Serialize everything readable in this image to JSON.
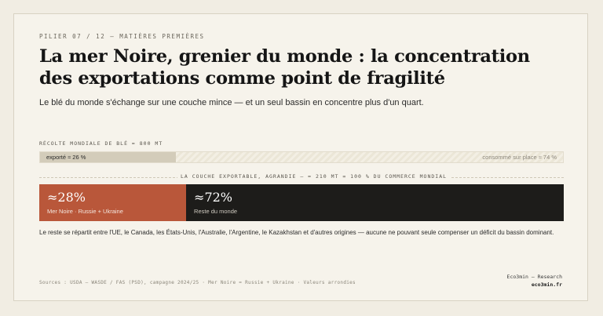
{
  "kicker": "PILIER 07 / 12 — MATIÈRES PREMIÈRES",
  "title": "La mer Noire, grenier du monde : la concentration des exportations comme point de fragilité",
  "subtitle": "Le blé du monde s'échange sur une couche mince — et un seul bassin en concentre plus d'un quart.",
  "harvest": {
    "label": "RÉCOLTE MONDIALE DE BLÉ ≈ 800 MT",
    "exported_label": "exporté ≈ 26 %",
    "exported_share": 0.26,
    "consumed_label": "consommé sur place ≈ 74 %"
  },
  "export_layer": {
    "label": "LA COUCHE EXPORTABLE, AGRANDIE — ≈ 210 MT = 100 % DU COMMERCE MONDIAL",
    "segments": [
      {
        "value": "≈28%",
        "label": "Mer Noire · Russie + Ukraine",
        "share": 0.28,
        "color": "#b9573a"
      },
      {
        "value": "≈72%",
        "label": "Reste du monde",
        "share": 0.72,
        "color": "#1d1c1a"
      }
    ]
  },
  "note": "Le reste se répartit entre l'UE, le Canada, les États-Unis, l'Australie, l'Argentine, le Kazakhstan et d'autres origines — aucune ne pouvant seule compenser un déficit du bassin dominant.",
  "sources": "Sources : USDA – WASDE / FAS (PSD), campagne 2024/25 · Mer Noire = Russie + Ukraine · Valeurs arrondies",
  "brand": {
    "name": "Eco3min — Research",
    "site": "eco3min.fr"
  }
}
